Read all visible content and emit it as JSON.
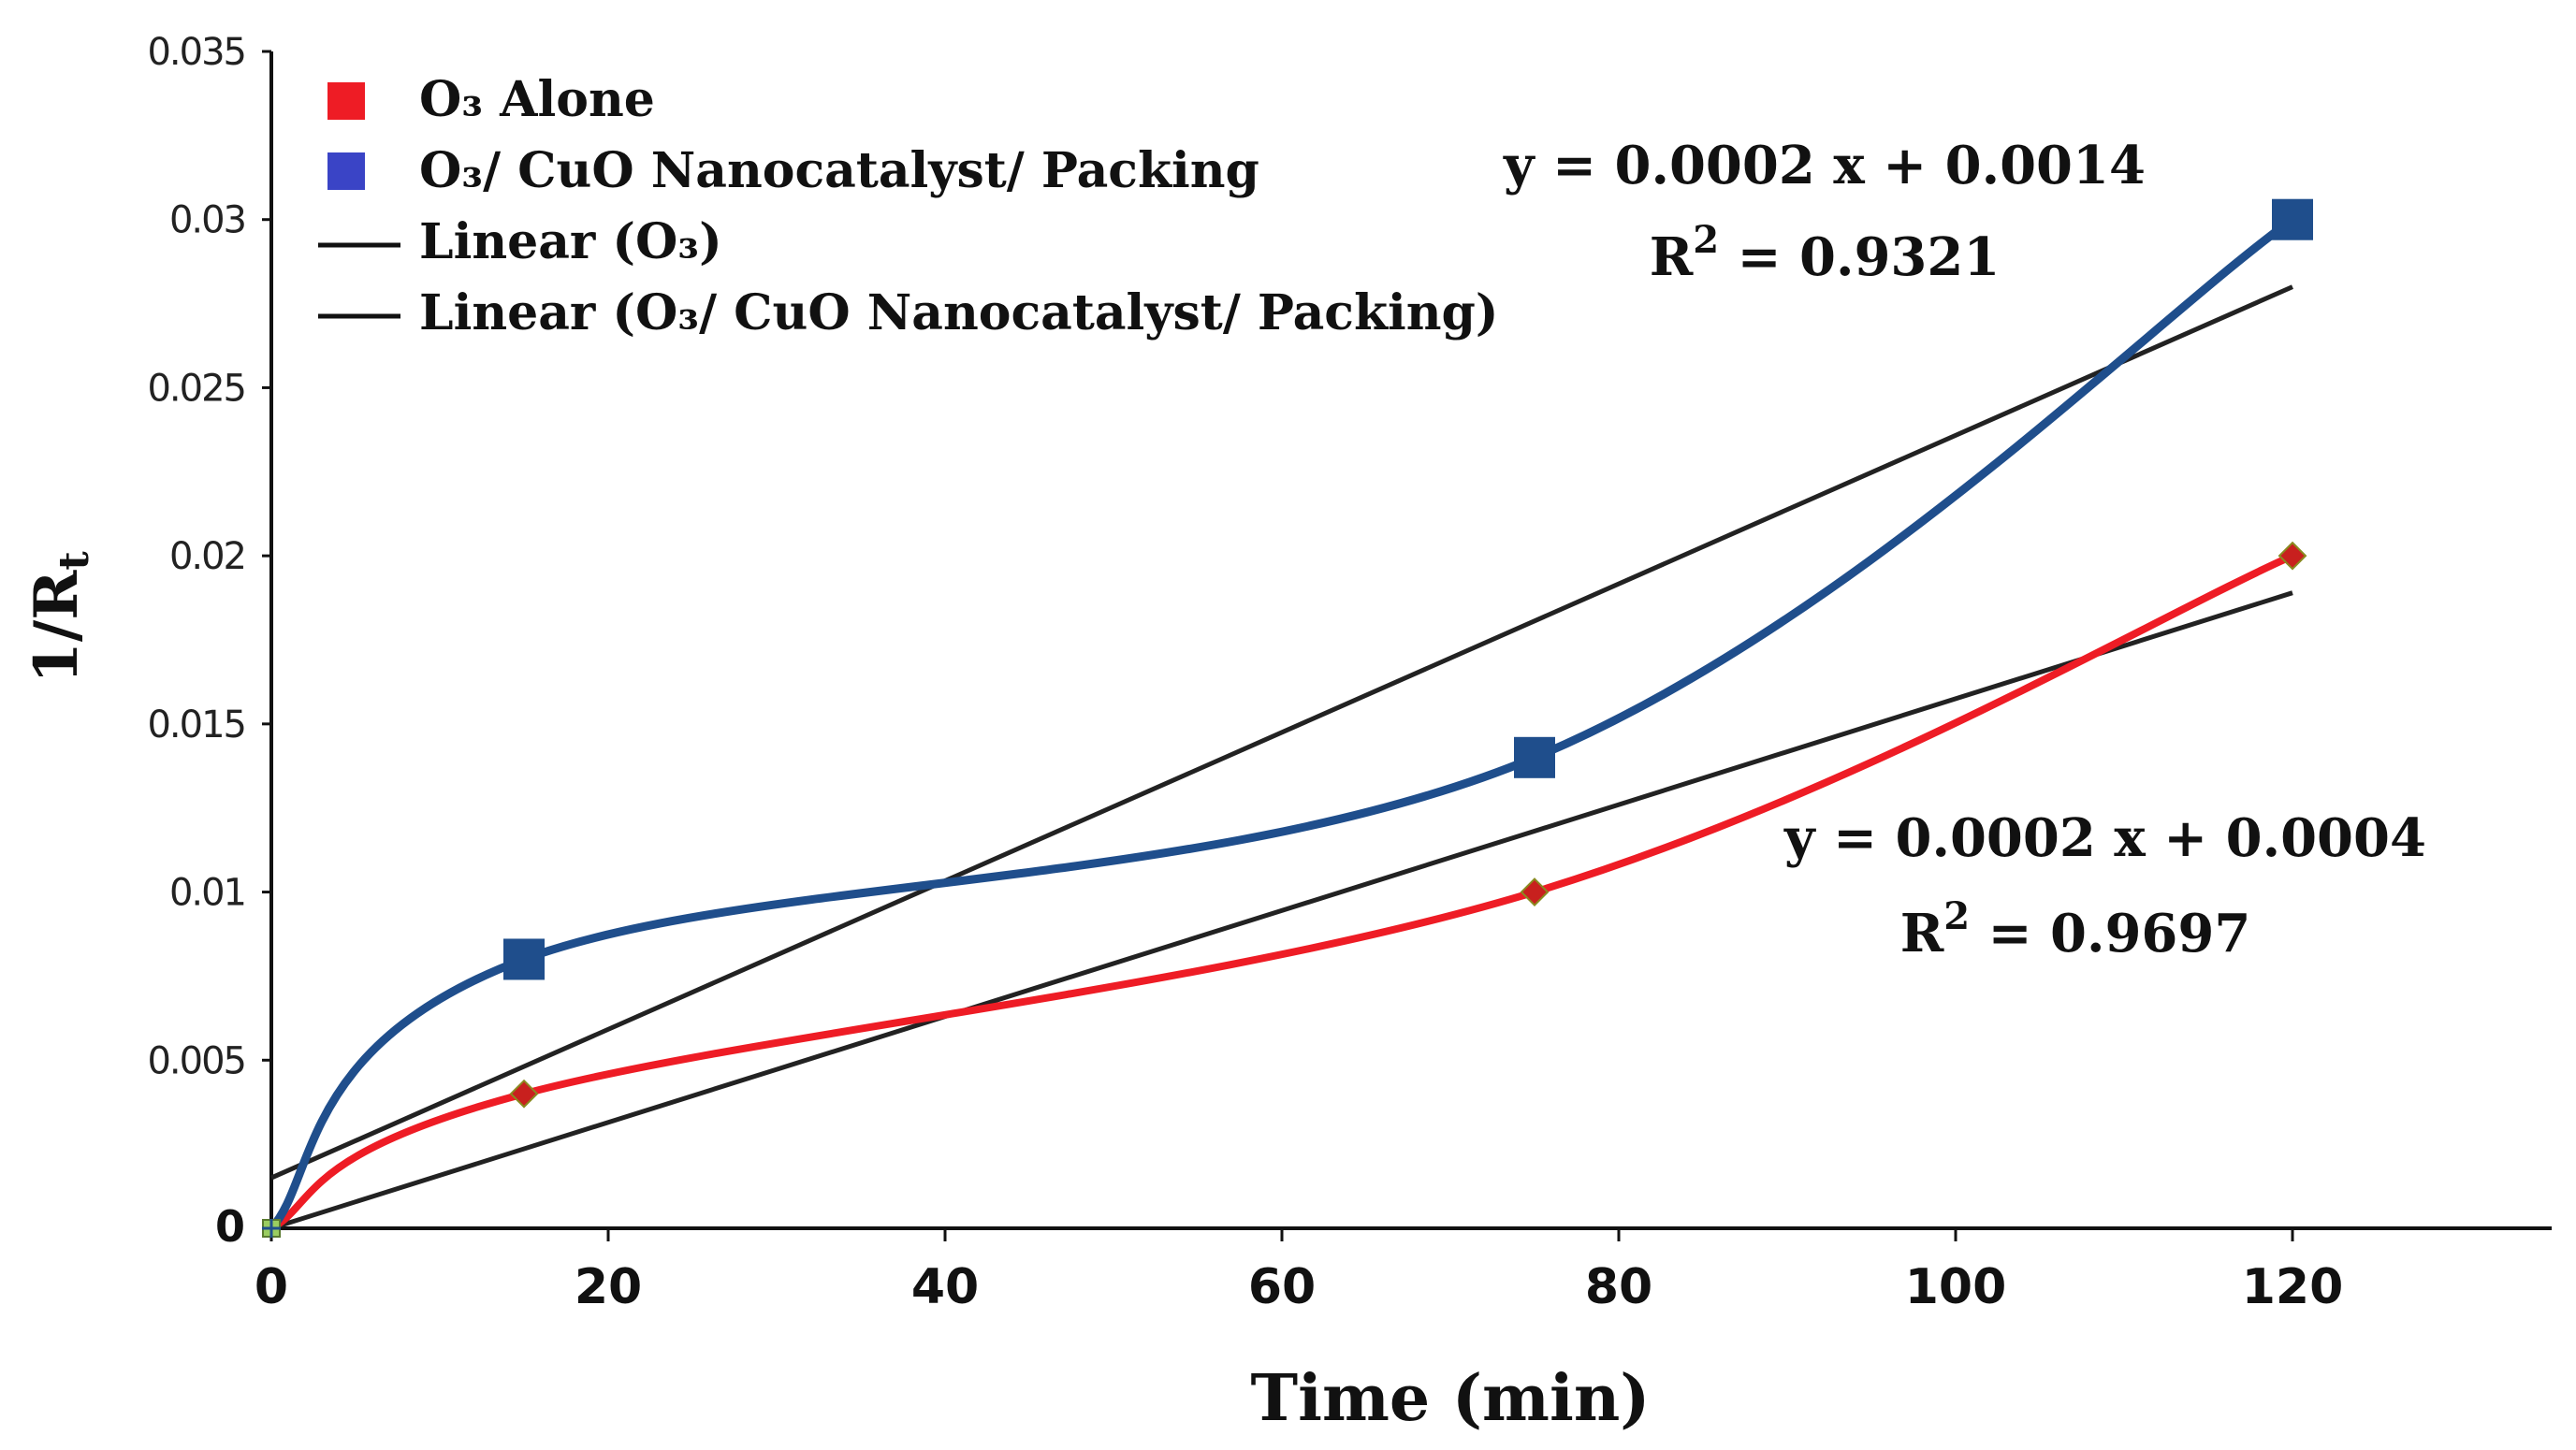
{
  "chart_data": {
    "type": "line",
    "xlabel": "Time (min)",
    "ylabel": "1/R",
    "ylabel_sub": "t",
    "xlim": [
      0,
      135
    ],
    "ylim": [
      0,
      0.035
    ],
    "x_ticks": [
      0,
      20,
      40,
      60,
      80,
      100,
      120
    ],
    "y_ticks": [
      0,
      0.005,
      0.01,
      0.015,
      0.02,
      0.025,
      0.03,
      0.035
    ],
    "y_tick_labels": [
      "0",
      "0.005",
      "0.01",
      "0.015",
      "0.02",
      "0.025",
      "0.03",
      "0.035"
    ],
    "series": [
      {
        "name": "O3 Alone",
        "legend_label": "O₃ Alone",
        "color": "#ee1c25",
        "marker": "diamond",
        "x": [
          0,
          15,
          75,
          120
        ],
        "values": [
          0,
          0.004,
          0.01,
          0.02
        ]
      },
      {
        "name": "O3/ CuO Nanocatalyst/ Packing",
        "legend_label": "O₃/ CuO Nanocatalyst/ Packing",
        "color": "#1f4e8c",
        "marker": "square",
        "x": [
          0,
          15,
          75,
          120
        ],
        "values": [
          0,
          0.008,
          0.014,
          0.03
        ]
      }
    ],
    "trendlines": [
      {
        "name": "Linear (O3)",
        "legend_label": "Linear (O₃)",
        "color": "#222222",
        "x": [
          0,
          120
        ],
        "values": [
          0,
          0.0189
        ]
      },
      {
        "name": "Linear (O3/ CuO Nanocatalyst/ Packing)",
        "legend_label": "Linear (O₃/ CuO Nanocatalyst/ Packing)",
        "color": "#222222",
        "x": [
          0,
          120
        ],
        "values": [
          0.0015,
          0.028
        ]
      }
    ],
    "legend_colors": [
      "#ee1c25",
      "#3a44c6"
    ],
    "annotations": [
      {
        "equation": "y = 0.0002 x + 0.0014",
        "r2_prefix": "R",
        "r2_sup": "2",
        "r2_value": " = 0.9321"
      },
      {
        "equation": "y = 0.0002 x + 0.0004",
        "r2_prefix": "R",
        "r2_sup": "2",
        "r2_value": " = 0.9697"
      }
    ]
  }
}
